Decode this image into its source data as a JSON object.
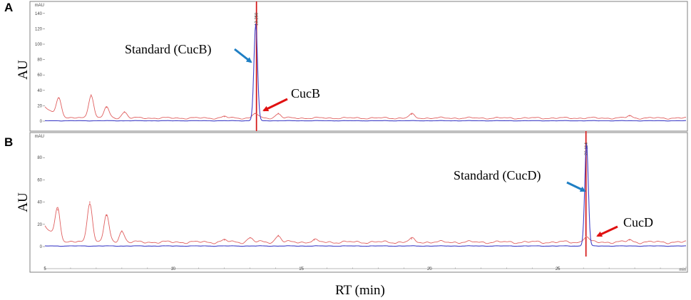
{
  "colors": {
    "sample": "#e06060",
    "standard": "#4040c8",
    "marker": "#cc0000",
    "arrow_standard": "#1f7fc4",
    "arrow_sample": "#e01010",
    "frame": "#808080"
  },
  "shared_xlabel": "RT (min)",
  "chart_data": [
    {
      "type": "line",
      "panel": "A",
      "ylabel": "AU",
      "y_unit": "mAU",
      "xlim": [
        5,
        30
      ],
      "ylim": [
        0,
        150
      ],
      "yticks": [
        0,
        20,
        40,
        60,
        80,
        100,
        120,
        140
      ],
      "x_tick_labels": [],
      "grid": false,
      "retention_marker": 13.25,
      "peak_time_label": "13.250",
      "series": [
        {
          "role": "sample",
          "baseline": 4,
          "tail_start": 5.6,
          "peaks": [
            [
              5.55,
              30
            ],
            [
              6.8,
              34
            ],
            [
              7.4,
              18
            ],
            [
              8.1,
              12
            ],
            [
              12.0,
              6
            ],
            [
              13.2,
              10
            ],
            [
              14.1,
              10
            ],
            [
              19.3,
              9
            ],
            [
              27.8,
              7
            ]
          ]
        },
        {
          "role": "standard",
          "baseline": 0.5,
          "tail_start": 0,
          "peaks": [
            [
              13.22,
              126
            ]
          ]
        }
      ],
      "annotations": [
        {
          "text": "Standard (CucB)",
          "points_to": "standard"
        },
        {
          "text": "CucB",
          "points_to": "sample"
        }
      ]
    },
    {
      "type": "line",
      "panel": "B",
      "ylabel": "AU",
      "y_unit": "mAU",
      "xlim": [
        5,
        30
      ],
      "ylim": [
        0,
        100
      ],
      "yticks": [
        0,
        20,
        40,
        60,
        80
      ],
      "x_tick_labels": [
        5,
        10,
        15,
        20,
        25
      ],
      "x_unit": "min",
      "grid": false,
      "retention_marker": 26.1,
      "peak_time_label": "26.114",
      "series": [
        {
          "role": "sample",
          "baseline": 4,
          "tail_start": 5.6,
          "peaks": [
            [
              5.5,
              33
            ],
            [
              6.75,
              40
            ],
            [
              7.4,
              28
            ],
            [
              8.0,
              14
            ],
            [
              12.0,
              6
            ],
            [
              13.0,
              8
            ],
            [
              14.1,
              10
            ],
            [
              15.5,
              6
            ],
            [
              19.3,
              7
            ],
            [
              26.1,
              9
            ],
            [
              27.8,
              6
            ]
          ]
        },
        {
          "role": "standard",
          "baseline": 0.5,
          "tail_start": 0,
          "peaks": [
            [
              26.12,
              92
            ]
          ]
        }
      ],
      "annotations": [
        {
          "text": "Standard (CucD)",
          "points_to": "standard"
        },
        {
          "text": "CucD",
          "points_to": "sample"
        }
      ]
    }
  ]
}
